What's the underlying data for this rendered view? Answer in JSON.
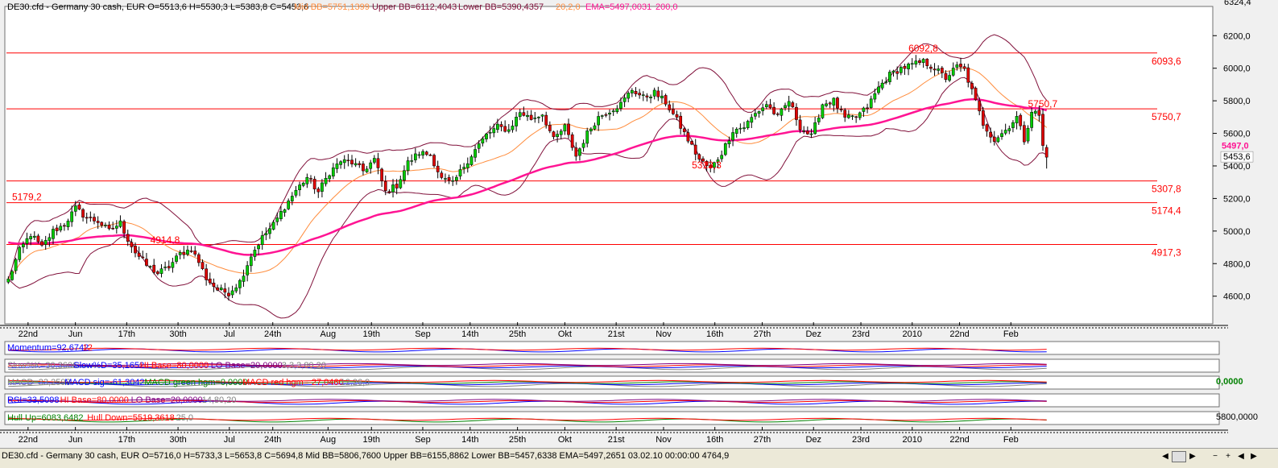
{
  "header": {
    "top_line": "DE30.cfd - Germany 30 cash, EUR O=5513,6 H=5530,3 L=5383,8 C=5453,6",
    "mid_bb": "Mid BB=5751,1399",
    "upper_bb": "Upper BB=6112,4043",
    "lower_bb": "Lower BB=5390,4357",
    "bb_params": "20,2,0",
    "ema": "EMA=5497,0031",
    "ema_param": "200,0",
    "top_right_value": "6324,4"
  },
  "chart_data": {
    "type": "line",
    "x_ticks": [
      "22nd",
      "Jun",
      "17th",
      "30th",
      "Jul",
      "24th",
      "Aug",
      "19th",
      "Sep",
      "14th",
      "25th",
      "Okt",
      "21st",
      "Nov",
      "16th",
      "27th",
      "Dez",
      "23rd",
      "2010",
      "22nd",
      "Feb"
    ],
    "y_ticks": [
      "4600,0",
      "4800,0",
      "5000,0",
      "5200,0",
      "5400,0",
      "5600,0",
      "5800,0",
      "6000,0",
      "6200,0"
    ],
    "ylim": [
      4450,
      6330
    ],
    "grid": false,
    "price_labels": {
      "current": "5453,6",
      "ema": "5497,0"
    },
    "horizontal_levels": [
      {
        "label": "6093,6",
        "value": 6093.6
      },
      {
        "label": "5750,7",
        "value": 5750.7
      },
      {
        "label": "5307,8",
        "value": 5307.8
      },
      {
        "label": "5174,4",
        "value": 5174.4
      },
      {
        "label": "4917,3",
        "value": 4917.3
      }
    ],
    "annotations": [
      {
        "label": "5179,2",
        "x": 1,
        "y": 5180
      },
      {
        "label": "4914,8",
        "x": 38,
        "y": 4915
      },
      {
        "label": "5313,3",
        "x": 183,
        "y": 5375
      },
      {
        "label": "6092,8",
        "x": 241,
        "y": 6093
      },
      {
        "label": "5750,7",
        "x": 273,
        "y": 5752
      }
    ],
    "close_anchors": [
      [
        0,
        4700
      ],
      [
        3,
        4880
      ],
      [
        6,
        4980
      ],
      [
        9,
        4900
      ],
      [
        12,
        5000
      ],
      [
        15,
        5040
      ],
      [
        18,
        5140
      ],
      [
        21,
        5080
      ],
      [
        24,
        5060
      ],
      [
        27,
        5000
      ],
      [
        30,
        5050
      ],
      [
        32,
        4950
      ],
      [
        34,
        4870
      ],
      [
        37,
        4790
      ],
      [
        40,
        4740
      ],
      [
        43,
        4780
      ],
      [
        46,
        4860
      ],
      [
        49,
        4890
      ],
      [
        51,
        4810
      ],
      [
        53,
        4710
      ],
      [
        56,
        4640
      ],
      [
        59,
        4620
      ],
      [
        62,
        4690
      ],
      [
        65,
        4850
      ],
      [
        68,
        4960
      ],
      [
        71,
        5040
      ],
      [
        74,
        5150
      ],
      [
        77,
        5250
      ],
      [
        80,
        5330
      ],
      [
        83,
        5240
      ],
      [
        86,
        5360
      ],
      [
        89,
        5430
      ],
      [
        92,
        5420
      ],
      [
        95,
        5370
      ],
      [
        98,
        5440
      ],
      [
        101,
        5240
      ],
      [
        104,
        5280
      ],
      [
        107,
        5420
      ],
      [
        110,
        5480
      ],
      [
        113,
        5470
      ],
      [
        116,
        5320
      ],
      [
        119,
        5290
      ],
      [
        122,
        5400
      ],
      [
        125,
        5500
      ],
      [
        128,
        5590
      ],
      [
        131,
        5640
      ],
      [
        134,
        5620
      ],
      [
        137,
        5730
      ],
      [
        140,
        5690
      ],
      [
        143,
        5720
      ],
      [
        146,
        5560
      ],
      [
        149,
        5640
      ],
      [
        152,
        5460
      ],
      [
        155,
        5600
      ],
      [
        158,
        5700
      ],
      [
        161,
        5740
      ],
      [
        164,
        5780
      ],
      [
        167,
        5870
      ],
      [
        170,
        5820
      ],
      [
        173,
        5850
      ],
      [
        176,
        5790
      ],
      [
        179,
        5680
      ],
      [
        182,
        5560
      ],
      [
        185,
        5440
      ],
      [
        188,
        5380
      ],
      [
        191,
        5480
      ],
      [
        194,
        5620
      ],
      [
        197,
        5640
      ],
      [
        200,
        5720
      ],
      [
        203,
        5780
      ],
      [
        206,
        5700
      ],
      [
        209,
        5800
      ],
      [
        212,
        5640
      ],
      [
        215,
        5580
      ],
      [
        218,
        5780
      ],
      [
        221,
        5800
      ],
      [
        224,
        5690
      ],
      [
        227,
        5700
      ],
      [
        230,
        5760
      ],
      [
        233,
        5880
      ],
      [
        236,
        5960
      ],
      [
        239,
        6000
      ],
      [
        242,
        6020
      ],
      [
        245,
        6040
      ],
      [
        248,
        6000
      ],
      [
        251,
        5940
      ],
      [
        254,
        6010
      ],
      [
        256,
        5990
      ],
      [
        258,
        5860
      ],
      [
        261,
        5660
      ],
      [
        264,
        5560
      ],
      [
        267,
        5620
      ],
      [
        270,
        5700
      ],
      [
        272,
        5560
      ],
      [
        274,
        5740
      ],
      [
        276,
        5710
      ],
      [
        277,
        5520
      ],
      [
        278,
        5453
      ]
    ],
    "ohlc_count": 279,
    "series": [
      {
        "role": "price",
        "color": "#000000"
      },
      {
        "role": "ema",
        "color": "#ff1493"
      },
      {
        "role": "mid_bb",
        "color": "#ff8c3c"
      },
      {
        "role": "bb_band",
        "color": "#80103a"
      },
      {
        "role": "horizontal_line",
        "color": "#ff0000"
      }
    ],
    "colors": {
      "up_candle": "#00cc00",
      "down_candle": "#e00000",
      "level_text": "#ff0000"
    }
  },
  "indicators": [
    {
      "label": "Momentum=92,6742",
      "param": "12",
      "colors": [
        "#0000ff",
        "#ff0000"
      ]
    },
    {
      "label": "Slow%K=30,3606",
      "label2": "Slow%D=35,1652",
      "label3": "HI Base=80,0000",
      "label4": "LO Base=20,0000",
      "param": "3,3,3,80,20",
      "colors": [
        "#808080",
        "#0000ff",
        "#ff0000",
        "#800080"
      ]
    },
    {
      "label": "MACD=33,2593",
      "label2": "MACD sig=-61,3042",
      "label3": "MACD green hgm=0,0000",
      "label4": "MACD red hgm=-27,0460",
      "param": "12,26,9",
      "right_value": "0,0000",
      "colors": [
        "#808080",
        "#0000ff",
        "#008000",
        "#ff0000"
      ]
    },
    {
      "label": "RSI=33,5098",
      "label2": "HI Base=80,0000",
      "label3": "LO Base=20,0000",
      "param": "14,80,20",
      "colors": [
        "#0000ff",
        "#ff0000",
        "#800080"
      ]
    },
    {
      "label": "Hull Up=6083,6482",
      "label2": "Hull Down=5519,3618",
      "param": "25,0",
      "right_value": "5800,0000",
      "colors": [
        "#008000",
        "#ff0000"
      ]
    }
  ],
  "status_bar": {
    "text": "DE30.cfd - Germany 30 cash, EUR O=5716,0 H=5733,3 L=5653,8 C=5694,8 Mid BB=5806,7600 Upper BB=6155,8862 Lower BB=5457,6338 EMA=5497,2651 03.02.10 00:00:00 4764,9"
  }
}
